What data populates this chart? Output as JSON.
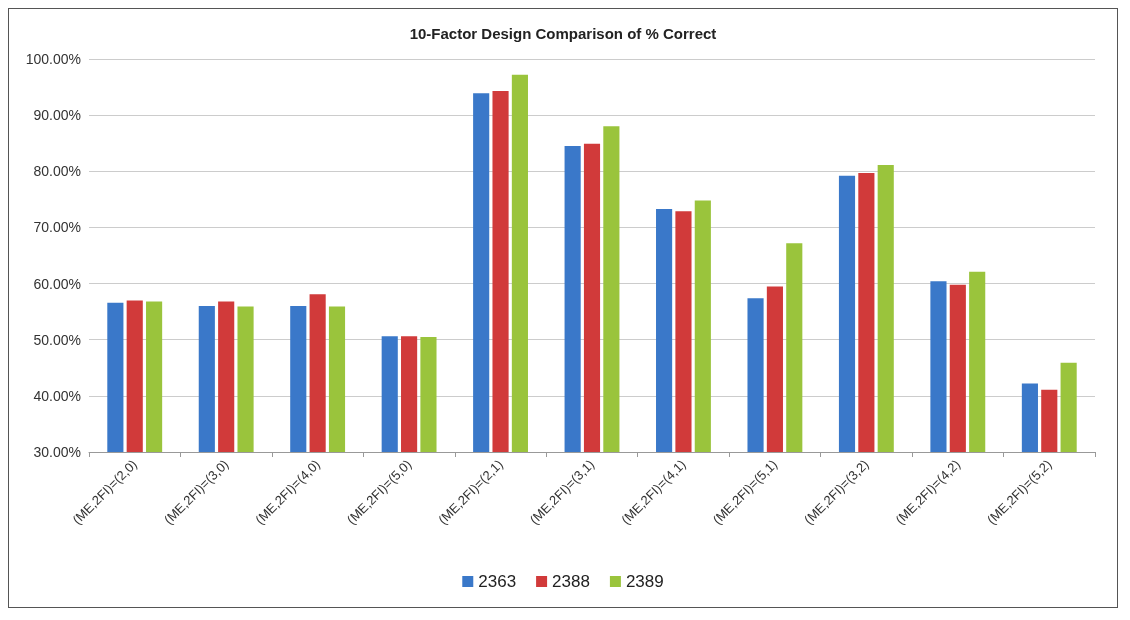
{
  "chart_data": {
    "type": "bar",
    "title": "10-Factor Design Comparison of % Correct",
    "categories": [
      "(ME,2FI)=(2,0)",
      "(ME,2FI)=(3,0)",
      "(ME,2FI)=(4,0)",
      "(ME,2FI)=(5,0)",
      "(ME,2FI)=(2,1)",
      "(ME,2FI)=(3,1)",
      "(ME,2FI)=(4,1)",
      "(ME,2FI)=(5,1)",
      "(ME,2FI)=(3,2)",
      "(ME,2FI)=(4,2)",
      "(ME,2FI)=(5,2)"
    ],
    "series": [
      {
        "name": "2363",
        "color": "#3a78c9",
        "values": [
          56.6,
          56.0,
          56.0,
          50.6,
          93.9,
          84.5,
          73.3,
          57.4,
          79.2,
          60.4,
          42.2
        ]
      },
      {
        "name": "2388",
        "color": "#d13a3a",
        "values": [
          57.0,
          56.8,
          58.1,
          50.6,
          94.3,
          84.9,
          72.9,
          59.5,
          79.7,
          59.8,
          41.1
        ]
      },
      {
        "name": "2389",
        "color": "#9ac43c",
        "values": [
          56.8,
          55.9,
          55.9,
          50.5,
          97.2,
          88.0,
          74.8,
          67.2,
          81.1,
          62.1,
          45.9
        ]
      }
    ],
    "ylim": [
      30,
      100
    ],
    "yticks": [
      {
        "value": 30,
        "label": "30.00%"
      },
      {
        "value": 40,
        "label": "40.00%"
      },
      {
        "value": 50,
        "label": "50.00%"
      },
      {
        "value": 60,
        "label": "60.00%"
      },
      {
        "value": 70,
        "label": "70.00%"
      },
      {
        "value": 80,
        "label": "80.00%"
      },
      {
        "value": 90,
        "label": "90.00%"
      },
      {
        "value": 100,
        "label": "100.00%"
      }
    ],
    "grid": "y",
    "legend": "bottom"
  }
}
